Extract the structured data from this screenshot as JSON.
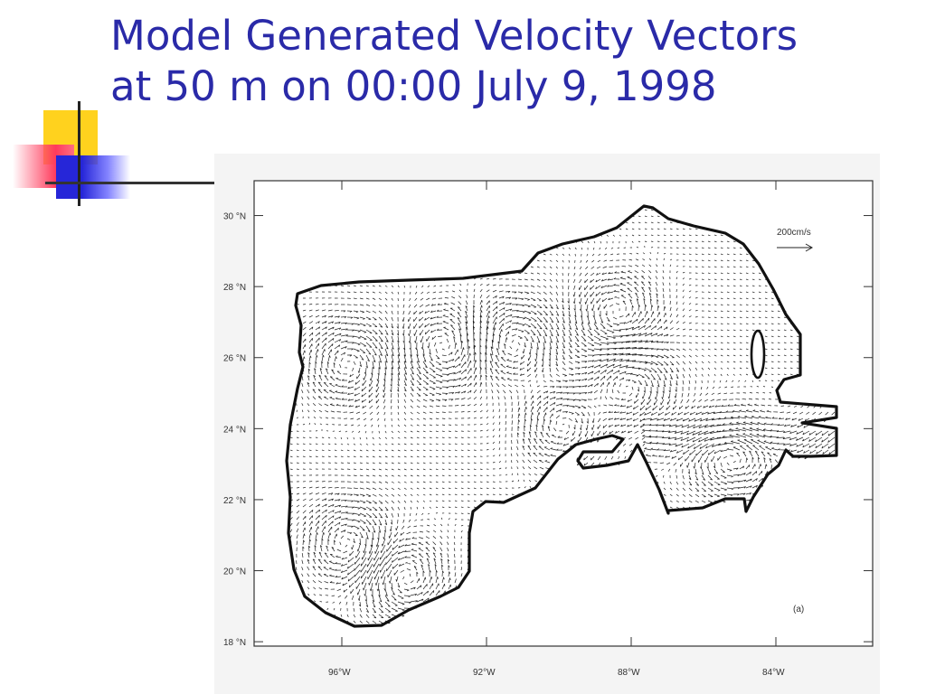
{
  "slide": {
    "title_line1": "Model Generated Velocity Vectors",
    "title_line2": "at 50 m on 00:00 July 9, 1998"
  },
  "map": {
    "y_ticks": [
      {
        "lat": 30,
        "label": "30 °N"
      },
      {
        "lat": 28,
        "label": "28 °N"
      },
      {
        "lat": 26,
        "label": "26 °N"
      },
      {
        "lat": 24,
        "label": "24 °N"
      },
      {
        "lat": 22,
        "label": "22 °N"
      },
      {
        "lat": 20,
        "label": "20 °N"
      },
      {
        "lat": 18,
        "label": "18 °N"
      }
    ],
    "x_ticks": [
      {
        "lon": -96,
        "label": "96°W"
      },
      {
        "lon": -92,
        "label": "92°W"
      },
      {
        "lon": -88,
        "label": "88°W"
      },
      {
        "lon": -84,
        "label": "84°W"
      }
    ],
    "scale_label": "200cm/s",
    "panel_label": "(a)"
  },
  "colors": {
    "title": "#2a2aa8",
    "deco_yellow": "#ffd21e",
    "deco_red": "#ff3b5c",
    "deco_blue": "#2626d8"
  }
}
